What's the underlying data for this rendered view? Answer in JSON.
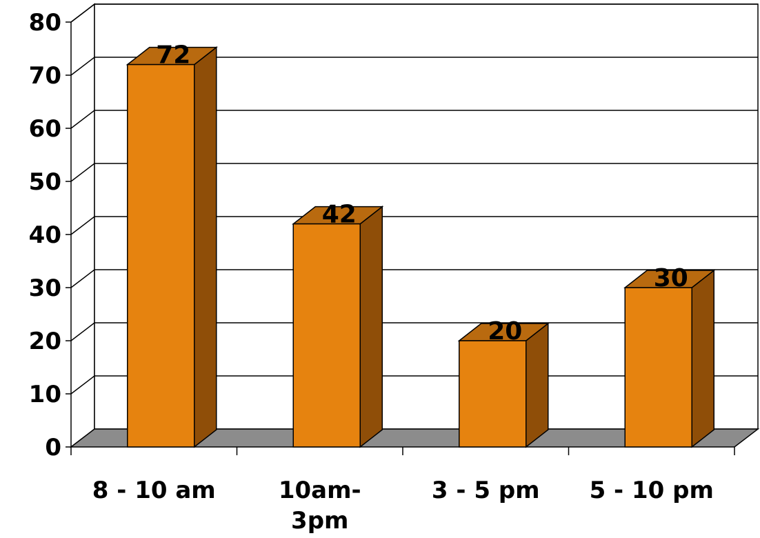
{
  "chart_data": {
    "type": "bar",
    "title": "",
    "xlabel": "",
    "ylabel": "",
    "categories": [
      "8 - 10 am",
      "10am-3pm",
      "3 - 5 pm",
      "5 - 10 pm"
    ],
    "category_lines": [
      [
        "8 - 10 am"
      ],
      [
        "10am-",
        "3pm"
      ],
      [
        "3 - 5 pm"
      ],
      [
        "5 - 10 pm"
      ]
    ],
    "values": [
      72,
      42,
      20,
      30
    ],
    "data_labels": [
      "72",
      "42",
      "20",
      "30"
    ],
    "ylim": [
      0,
      80
    ],
    "yticks": [
      0,
      10,
      20,
      30,
      40,
      50,
      60,
      70,
      80
    ],
    "grid": true,
    "legend": "none",
    "style": "3d",
    "colors": {
      "bar_front": "#E6830F",
      "bar_top": "#B96A0F",
      "bar_side": "#8F4E08",
      "floor": "#8C8C8C",
      "grid": "#000000",
      "text": "#000000"
    }
  }
}
